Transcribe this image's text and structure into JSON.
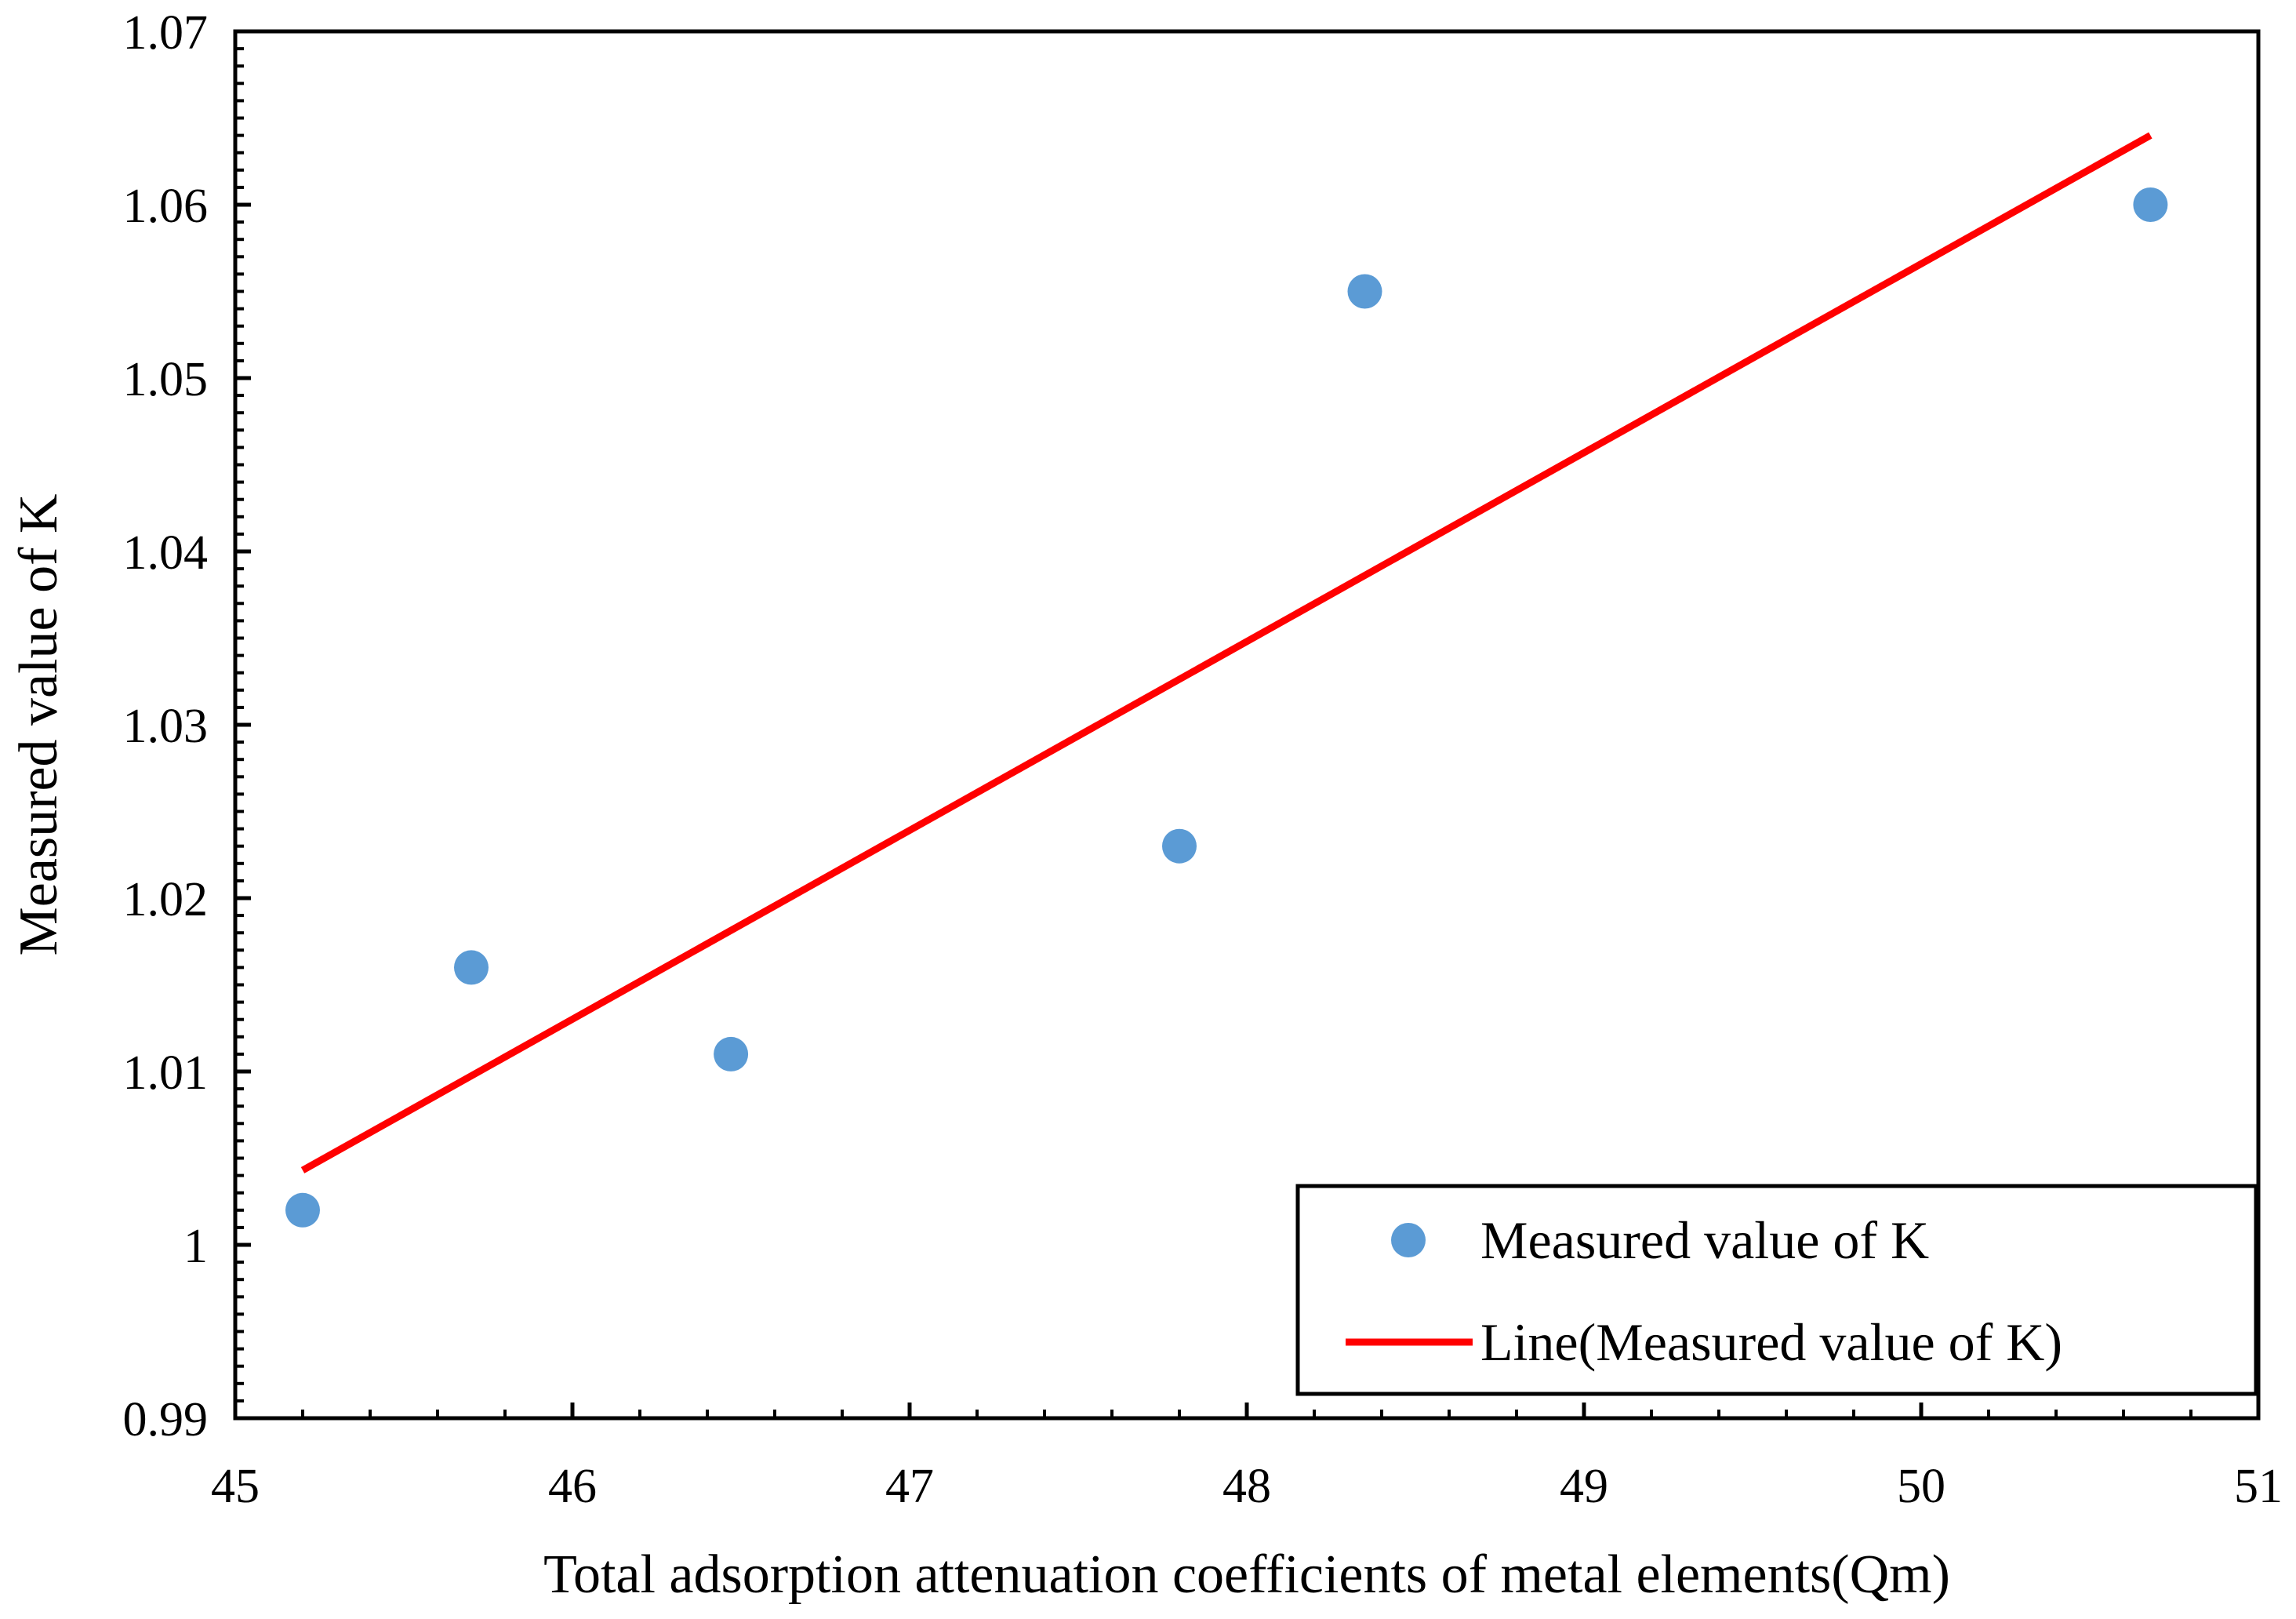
{
  "chart_data": {
    "type": "scatter",
    "title": "",
    "xlabel": "Total adsorption attenuation coefficients of metal elements(Qm)",
    "ylabel": "Measured value of K",
    "xlim": [
      45,
      51
    ],
    "ylim": [
      0.99,
      1.07
    ],
    "x_ticks": [
      "45",
      "46",
      "47",
      "48",
      "49",
      "50",
      "51"
    ],
    "y_ticks": [
      "0.99",
      "1",
      "1.01",
      "1.02",
      "1.03",
      "1.04",
      "1.05",
      "1.06",
      "1.07"
    ],
    "grid": false,
    "legend_position": "bottom-right",
    "series": [
      {
        "name": "Measured value of K",
        "kind": "scatter",
        "color": "#5B9BD5",
        "points": [
          {
            "x": 45.2,
            "y": 1.002
          },
          {
            "x": 45.7,
            "y": 1.016
          },
          {
            "x": 46.47,
            "y": 1.011
          },
          {
            "x": 47.8,
            "y": 1.023
          },
          {
            "x": 48.35,
            "y": 1.055
          },
          {
            "x": 50.68,
            "y": 1.06
          }
        ]
      },
      {
        "name": "Line(Measured value of K)",
        "kind": "line",
        "color": "#FF0000",
        "points": [
          {
            "x": 45.2,
            "y": 1.0043
          },
          {
            "x": 50.68,
            "y": 1.064
          }
        ]
      }
    ]
  }
}
